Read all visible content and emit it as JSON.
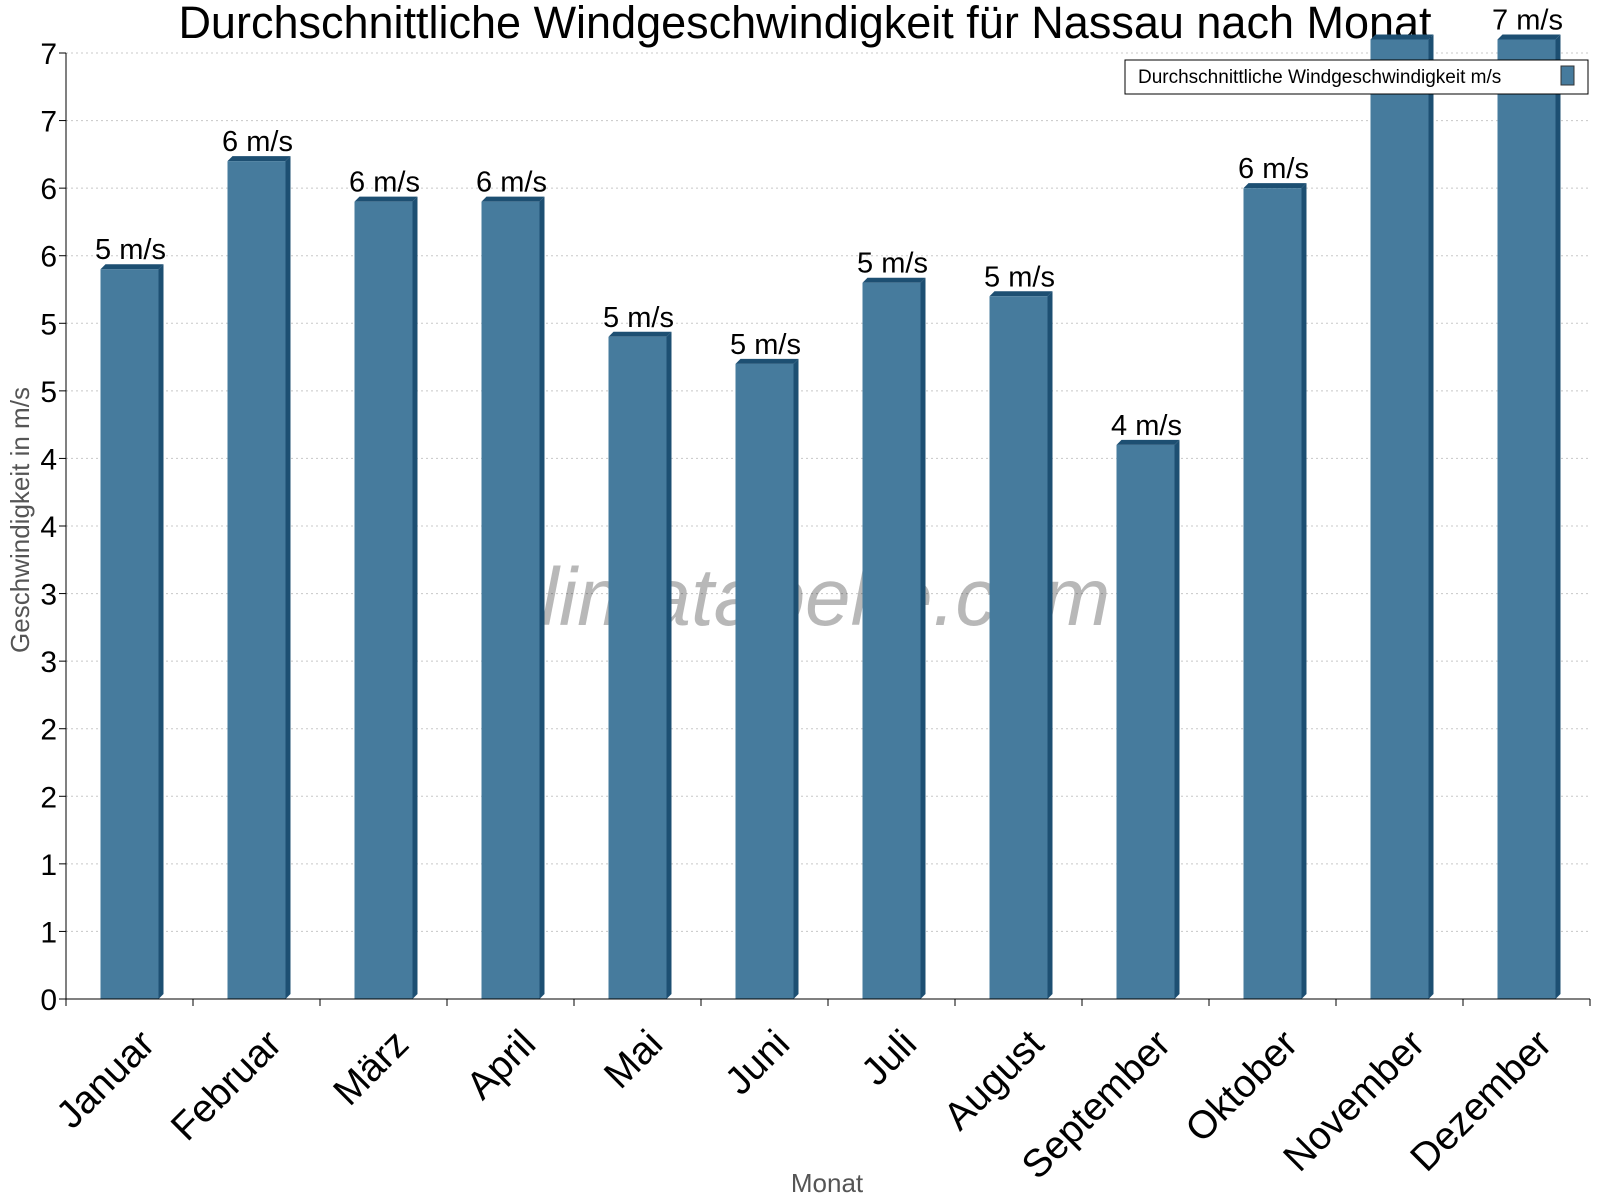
{
  "chart_data": {
    "type": "bar",
    "title": "Durchschnittliche Windgeschwindigkeit für Nassau nach Monat",
    "xlabel": "Monat",
    "ylabel": "Geschwindigkeit in m/s",
    "categories": [
      "Januar",
      "Februar",
      "März",
      "April",
      "Mai",
      "Juni",
      "Juli",
      "August",
      "September",
      "Oktober",
      "November",
      "Dezember"
    ],
    "series": [
      {
        "name": "Durchschnittliche Windgeschwindigkeit m/s",
        "values": [
          5.4,
          6.2,
          5.9,
          5.9,
          4.9,
          4.7,
          5.3,
          5.2,
          4.1,
          6.0,
          7.1,
          7.1
        ],
        "labels": [
          "5 m/s",
          "6 m/s",
          "6 m/s",
          "6 m/s",
          "5 m/s",
          "5 m/s",
          "5 m/s",
          "5 m/s",
          "4 m/s",
          "6 m/s",
          "",
          "7 m/s"
        ]
      }
    ],
    "ylim": [
      0,
      7
    ],
    "ytick_values": [
      0,
      0.5,
      1,
      1.5,
      2,
      2.5,
      3,
      3.5,
      4,
      4.5,
      5,
      5.5,
      6,
      6.5,
      7
    ],
    "ytick_labels": [
      "0",
      "1",
      "1",
      "2",
      "2",
      "3",
      "3",
      "4",
      "4",
      "5",
      "5",
      "6",
      "6",
      "7",
      "7"
    ],
    "grid": true,
    "legend_position": "top-right",
    "bar_color": "#467b9d",
    "bar_side_color": "#1d4f72"
  },
  "watermark": "klimatabelle.com"
}
